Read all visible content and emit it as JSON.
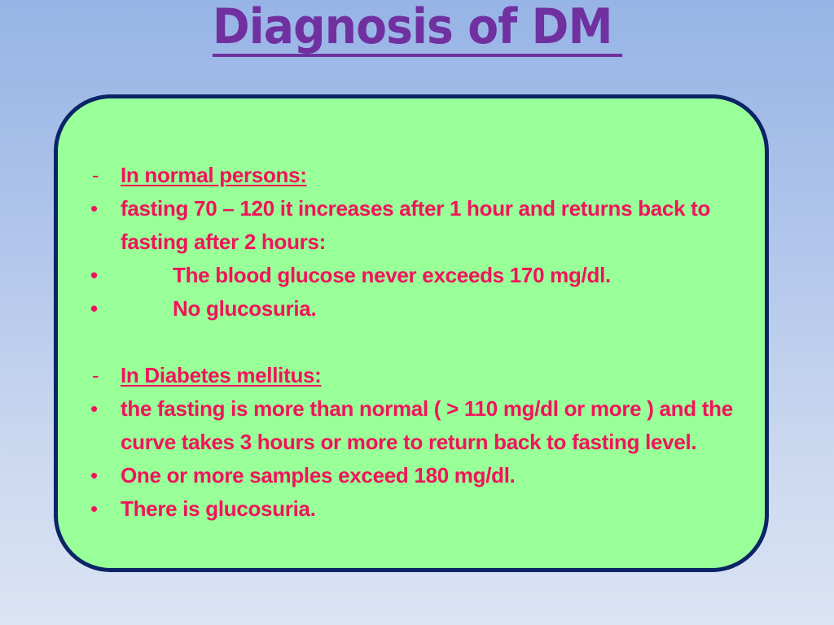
{
  "slide": {
    "title": "Diagnosis of DM",
    "colors": {
      "title": "#7030a0",
      "text": "#f0145a",
      "card_fill": "#99ff99",
      "card_border": "#0a2466"
    }
  },
  "normal": {
    "heading": "In normal persons:",
    "marker_dash": "-",
    "marker_bullet": "•",
    "item1": "fasting 70 – 120 it increases after 1 hour and returns back to fasting after 2 hours:",
    "sub1": "The blood glucose never exceeds 170 mg/dl.",
    "sub2": "No glucosuria."
  },
  "diabetes": {
    "heading": "In Diabetes mellitus:",
    "marker_dash": "-",
    "marker_bullet": "•",
    "item1": "the fasting is more than normal ( > 110 mg/dl or more ) and the curve takes 3 hours or more to return back to fasting level.",
    "item2": "One or more samples exceed 180 mg/dl.",
    "item3": "There is glucosuria."
  }
}
